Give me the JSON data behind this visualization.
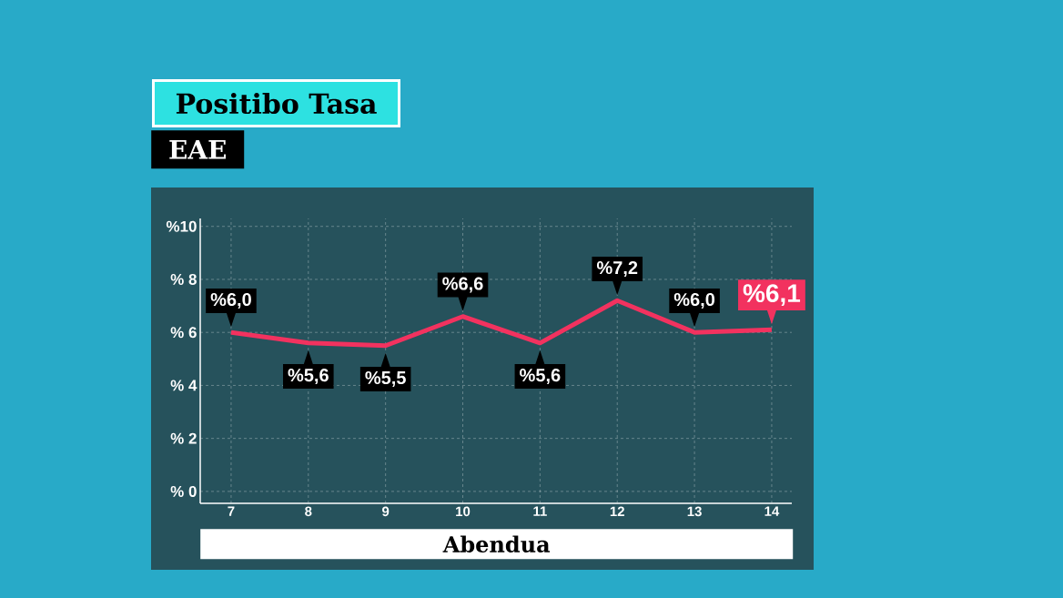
{
  "chart_data": {
    "type": "line",
    "title": "Positibo Tasa",
    "subtitle": "EAE",
    "xlabel": "Abendua",
    "categories": [
      "7",
      "8",
      "9",
      "10",
      "11",
      "12",
      "13",
      "14"
    ],
    "values": [
      6.0,
      5.6,
      5.5,
      6.6,
      5.6,
      7.2,
      6.0,
      6.1
    ],
    "value_labels": [
      "%6,0",
      "%5,6",
      "%5,5",
      "%6,6",
      "%5,6",
      "%7,2",
      "%6,0",
      "%6,1"
    ],
    "color": "#f2325f",
    "ylim": [
      -0.45,
      10.3
    ],
    "yticks": [
      {
        "value": 0,
        "label": "% 0"
      },
      {
        "value": 2,
        "label": "% 2"
      },
      {
        "value": 4,
        "label": "% 4"
      },
      {
        "value": 6,
        "label": "% 6"
      },
      {
        "value": 8,
        "label": "% 8"
      },
      {
        "value": 10,
        "label": "%10"
      }
    ],
    "grid": true,
    "marker": "none",
    "line_style": "solid"
  }
}
